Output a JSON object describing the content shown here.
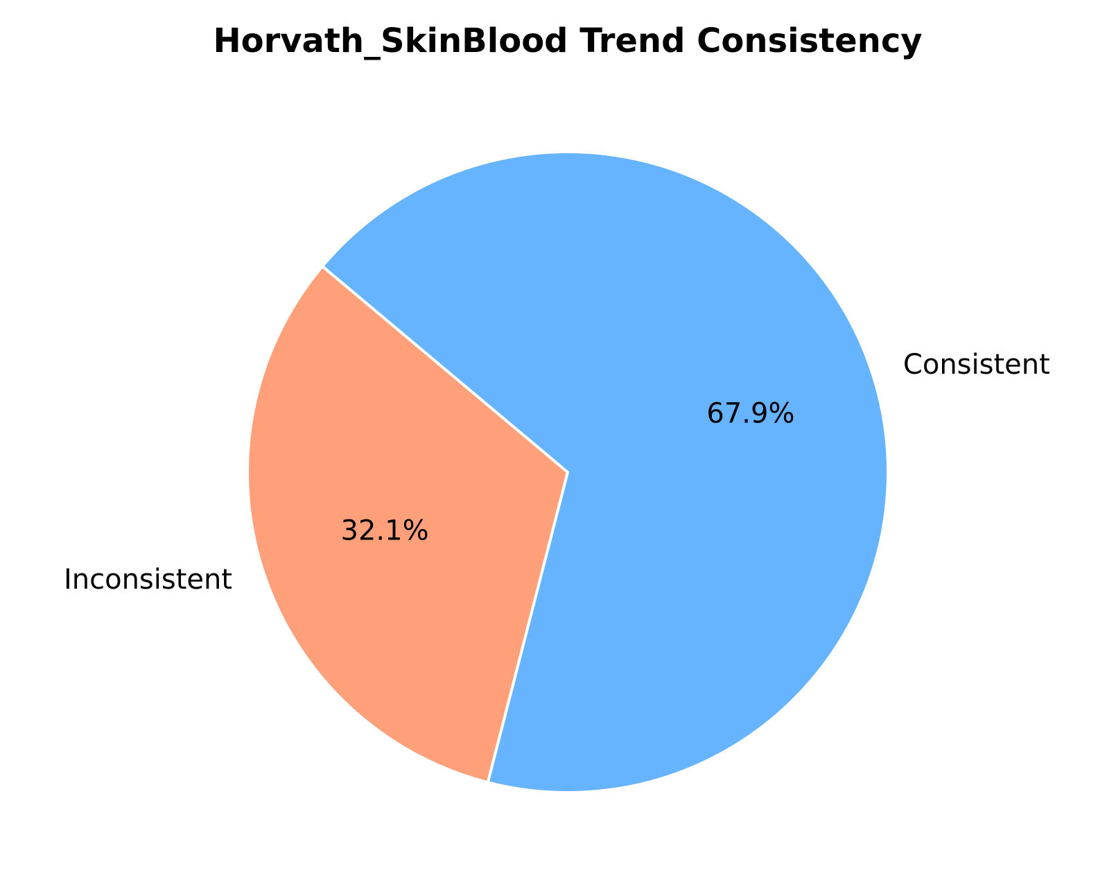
{
  "chart_data": {
    "type": "pie",
    "title": "Horvath_SkinBlood Trend Consistency",
    "categories": [
      "Inconsistent",
      "Consistent"
    ],
    "values": [
      32.1,
      67.9
    ],
    "percent_labels": [
      "32.1%",
      "67.9%"
    ],
    "colors": [
      "#ffa07a",
      "#66b3ff"
    ],
    "edge_color": "#ffffff",
    "start_angle_deg": 140,
    "direction": "counterclockwise"
  }
}
